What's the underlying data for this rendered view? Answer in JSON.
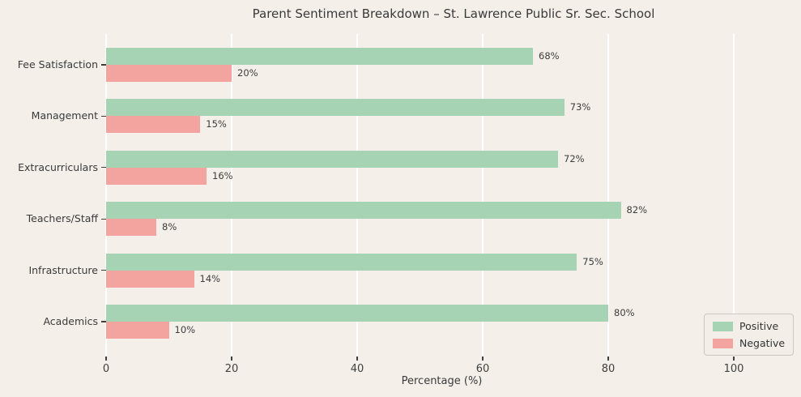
{
  "title": "Parent Sentiment Breakdown – St. Lawrence Public Sr. Sec. School",
  "chart_data": {
    "type": "bar",
    "orientation": "horizontal",
    "title": "Parent Sentiment Breakdown – St. Lawrence Public Sr. Sec. School",
    "categories": [
      "Fee Satisfaction",
      "Management",
      "Extracurriculars",
      "Teachers/Staff",
      "Infrastructure",
      "Academics"
    ],
    "series": [
      {
        "name": "Positive",
        "color": "#a6d3b4",
        "values": [
          68,
          73,
          72,
          82,
          75,
          80
        ]
      },
      {
        "name": "Negative",
        "color": "#f3a49e",
        "values": [
          20,
          15,
          16,
          8,
          14,
          10
        ]
      }
    ],
    "value_suffix": "%",
    "xlabel": "Percentage (%)",
    "xlim": [
      0,
      107
    ],
    "xticks": [
      0,
      20,
      40,
      60,
      80,
      100
    ],
    "grid": true,
    "legend_position": "lower right"
  },
  "legend": {
    "items": [
      {
        "label": "Positive",
        "color": "#a6d3b4"
      },
      {
        "label": "Negative",
        "color": "#f3a49e"
      }
    ]
  },
  "colors": {
    "background": "#f4efe9",
    "grid": "#ffffff",
    "positive": "#a6d3b4",
    "negative": "#f3a49e",
    "text": "#3a3a3a",
    "legend_background": "#f3eee8"
  }
}
